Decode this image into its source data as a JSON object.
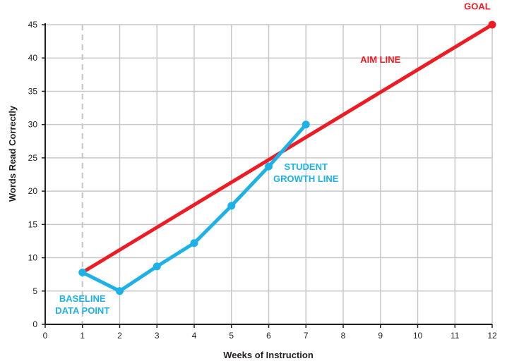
{
  "chart_data": {
    "type": "line",
    "xlabel": "Weeks of Instruction",
    "ylabel": "Words Read Correctly",
    "xlim": [
      0,
      12
    ],
    "ylim": [
      0,
      45
    ],
    "x_ticks": [
      0,
      1,
      2,
      3,
      4,
      5,
      6,
      7,
      8,
      9,
      10,
      11,
      12
    ],
    "y_ticks": [
      0,
      5,
      10,
      15,
      20,
      25,
      30,
      35,
      40,
      45
    ],
    "grid": true,
    "baseline_marker_x": 1,
    "series": [
      {
        "points": [
          [
            1,
            7.8
          ],
          [
            12,
            45
          ]
        ],
        "color": "#ed1c24",
        "marker": "end",
        "label_lines": [
          "AIM LINE"
        ],
        "label_at": [
          9,
          39.3
        ],
        "label_anchor": "middle"
      },
      {
        "points": [
          [
            1,
            7.8
          ],
          [
            2,
            5
          ],
          [
            3,
            8.7
          ],
          [
            4,
            12.2
          ],
          [
            5,
            17.8
          ],
          [
            6,
            23.7
          ],
          [
            7,
            30
          ]
        ],
        "color": "#1cb2e8",
        "marker": "all",
        "label_lines": [
          "STUDENT",
          "GROWTH LINE"
        ],
        "label_at": [
          7,
          23.2
        ],
        "label_anchor": "middle"
      }
    ],
    "annotations": [
      {
        "lines": [
          "GOAL"
        ],
        "x": 11.6,
        "y": 47.3,
        "color": "#ed1c24"
      },
      {
        "lines": [
          "BASELINE",
          "DATA POINT"
        ],
        "x": 1,
        "y": 3.4,
        "color": "#1cb2e8"
      }
    ]
  }
}
